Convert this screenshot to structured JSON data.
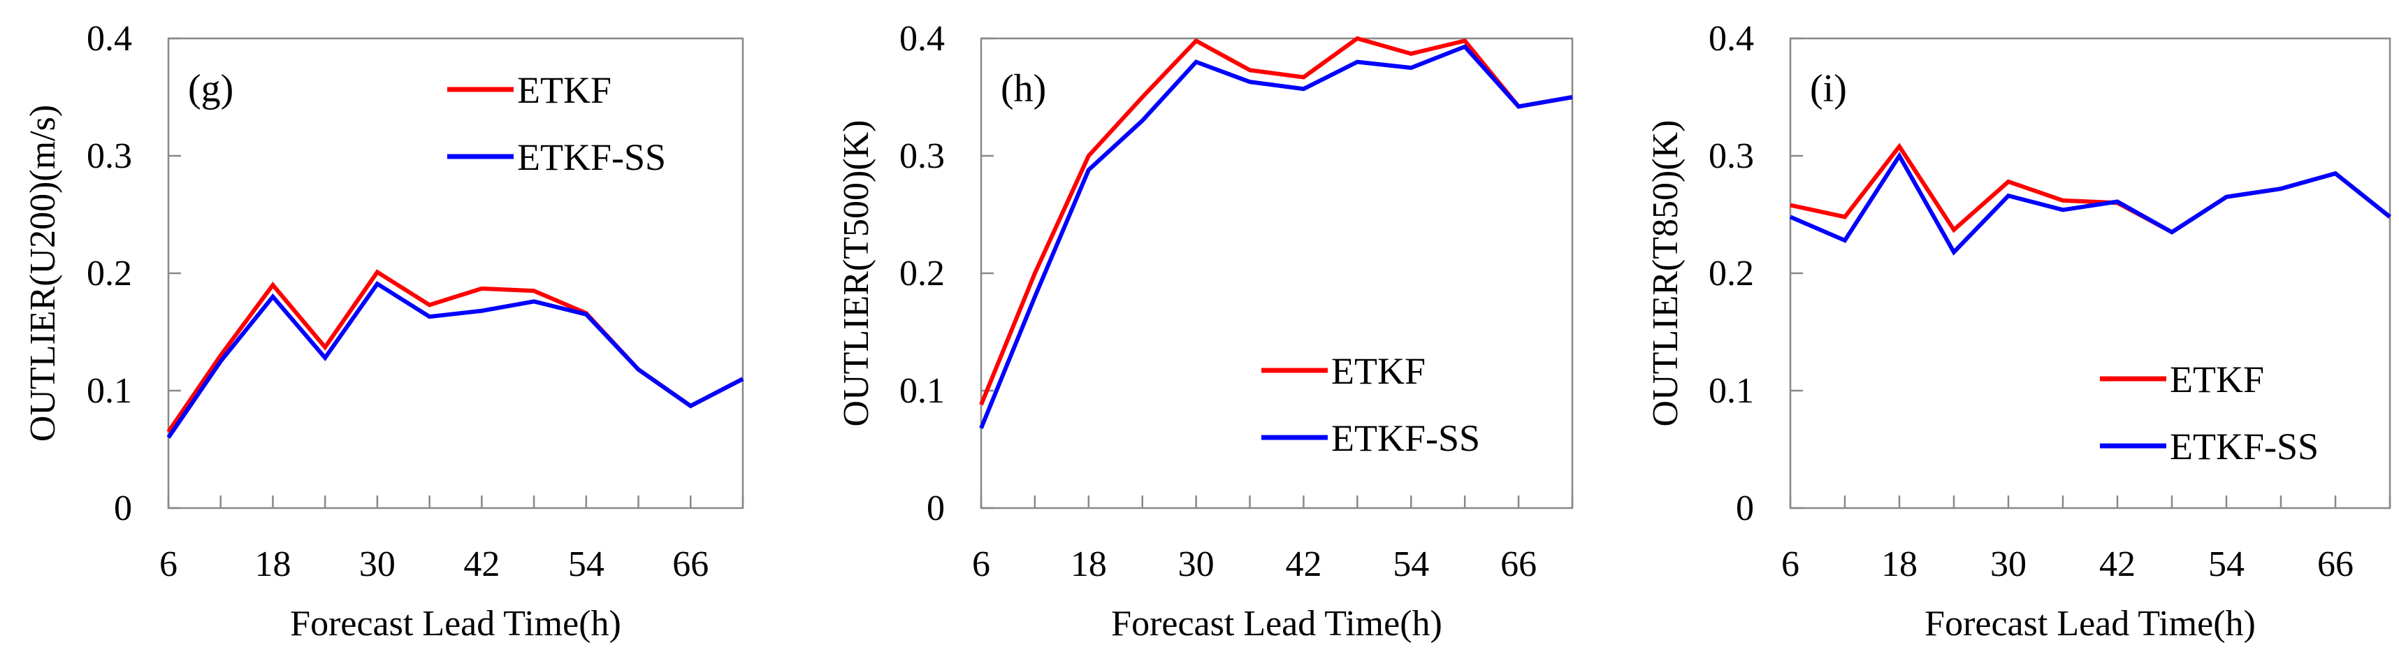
{
  "chart_data": [
    {
      "type": "line",
      "panel_label": "(g)",
      "title": "",
      "xlabel": "Forecast Lead Time(h)",
      "ylabel": "OUTLIER(U200)(m/s)",
      "x": [
        6,
        12,
        18,
        24,
        30,
        36,
        42,
        48,
        54,
        60,
        66,
        72
      ],
      "xticks": [
        6,
        18,
        30,
        42,
        54,
        66
      ],
      "xlim": [
        6,
        72
      ],
      "ylim": [
        0,
        0.4
      ],
      "yticks": [
        0,
        0.1,
        0.2,
        0.3,
        0.4
      ],
      "ytick_labels": [
        "0",
        "0.1",
        "0.2",
        "0.3",
        "0.4"
      ],
      "legend_position": "top-right",
      "grid": false,
      "series": [
        {
          "name": "ETKF",
          "color": "#ff0000",
          "values": [
            0.065,
            0.13,
            0.19,
            0.137,
            0.201,
            0.173,
            0.187,
            0.185,
            0.166,
            0.118,
            0.087,
            0.11
          ]
        },
        {
          "name": "ETKF-SS",
          "color": "#0000ff",
          "values": [
            0.06,
            0.125,
            0.18,
            0.128,
            0.191,
            0.163,
            0.168,
            0.176,
            0.165,
            0.118,
            0.087,
            0.11
          ]
        }
      ]
    },
    {
      "type": "line",
      "panel_label": "(h)",
      "title": "",
      "xlabel": "Forecast Lead Time(h)",
      "ylabel": "OUTLIER(T500)(K)",
      "x": [
        6,
        12,
        18,
        24,
        30,
        36,
        42,
        48,
        54,
        60,
        66,
        72
      ],
      "xticks": [
        6,
        18,
        30,
        42,
        54,
        66
      ],
      "xlim": [
        6,
        72
      ],
      "ylim": [
        0,
        0.4
      ],
      "yticks": [
        0,
        0.1,
        0.2,
        0.3,
        0.4
      ],
      "ytick_labels": [
        "0",
        "0.1",
        "0.2",
        "0.3",
        "0.4"
      ],
      "legend_position": "bottom-right",
      "grid": false,
      "series": [
        {
          "name": "ETKF",
          "color": "#ff0000",
          "values": [
            0.088,
            0.2,
            0.3,
            0.35,
            0.398,
            0.373,
            0.367,
            0.4,
            0.387,
            0.398,
            0.342,
            0.35
          ]
        },
        {
          "name": "ETKF-SS",
          "color": "#0000ff",
          "values": [
            0.068,
            0.18,
            0.288,
            0.33,
            0.38,
            0.363,
            0.357,
            0.38,
            0.375,
            0.393,
            0.342,
            0.35
          ]
        }
      ]
    },
    {
      "type": "line",
      "panel_label": "(i)",
      "title": "",
      "xlabel": "Forecast Lead Time(h)",
      "ylabel": "OUTLIER(T850)(K)",
      "x": [
        6,
        12,
        18,
        24,
        30,
        36,
        42,
        48,
        54,
        60,
        66,
        72
      ],
      "xticks": [
        6,
        18,
        30,
        42,
        54,
        66
      ],
      "xlim": [
        6,
        72
      ],
      "ylim": [
        0,
        0.4
      ],
      "yticks": [
        0,
        0.1,
        0.2,
        0.3,
        0.4
      ],
      "ytick_labels": [
        "0",
        "0.1",
        "0.2",
        "0.3",
        "0.4"
      ],
      "legend_position": "bottom-right",
      "grid": false,
      "series": [
        {
          "name": "ETKF",
          "color": "#ff0000",
          "values": [
            0.258,
            0.248,
            0.308,
            0.237,
            0.278,
            0.262,
            0.26,
            0.235,
            0.265,
            0.272,
            0.285,
            0.248
          ]
        },
        {
          "name": "ETKF-SS",
          "color": "#0000ff",
          "values": [
            0.248,
            0.228,
            0.3,
            0.218,
            0.266,
            0.254,
            0.261,
            0.235,
            0.265,
            0.272,
            0.285,
            0.248
          ]
        }
      ]
    }
  ]
}
